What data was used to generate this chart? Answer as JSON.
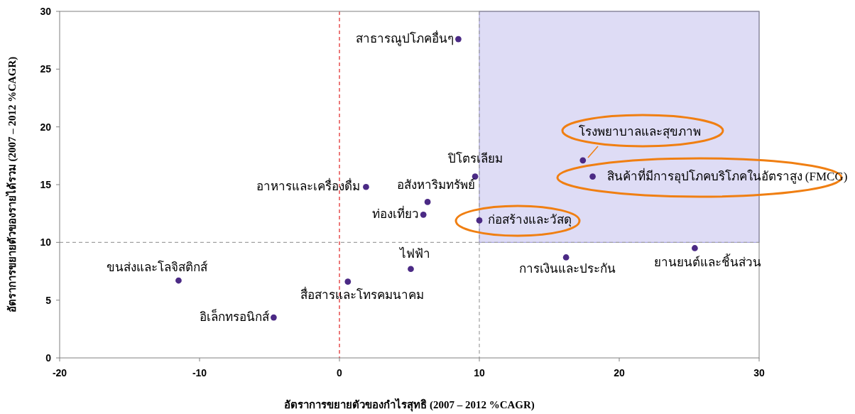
{
  "chart_data": {
    "type": "scatter",
    "xlabel": "อัตราการขยายตัวของกำไรสุทธิ (2007 – 2012 %CAGR)",
    "ylabel": "อัตราการขยายตัวของรายได้รวม (2007 – 2012 %CAGR)",
    "x": [
      8.5,
      17.4,
      18.1,
      9.7,
      1.9,
      6.3,
      6.0,
      10.0,
      16.2,
      25.4,
      5.1,
      -11.5,
      0.6,
      -4.7
    ],
    "series": [
      {
        "color": "#4b2a85",
        "values": [
          27.6,
          17.1,
          15.7,
          15.7,
          14.8,
          13.5,
          12.4,
          11.9,
          8.7,
          9.5,
          7.7,
          6.7,
          6.6,
          3.5
        ]
      }
    ],
    "annotations": [
      {
        "text": "สาธารณูปโภคอื่นๆ",
        "x": 8.5,
        "y": 27.6
      },
      {
        "text": "โรงพยาบาลและสุขภาพ",
        "x": 17.4,
        "y": 17.1
      },
      {
        "text": "สินค้าที่มีการอุปโภคบริโภคในอัตราสูง (FMCG)",
        "x": 18.1,
        "y": 15.7
      },
      {
        "text": "ปิโตรเลียม",
        "x": 9.7,
        "y": 15.7
      },
      {
        "text": "อาหารและเครื่องดื่ม",
        "x": 1.9,
        "y": 14.8
      },
      {
        "text": "อสังหาริมทรัพย์",
        "x": 6.3,
        "y": 13.5
      },
      {
        "text": "ท่องเที่ยว",
        "x": 6.0,
        "y": 12.4
      },
      {
        "text": "ก่อสร้างและวัสดุ",
        "x": 10.0,
        "y": 11.9
      },
      {
        "text": "การเงินและประกัน",
        "x": 16.2,
        "y": 8.7
      },
      {
        "text": "ยานยนต์และชิ้นส่วน",
        "x": 25.4,
        "y": 9.5
      },
      {
        "text": "ไฟฟ้า",
        "x": 5.1,
        "y": 7.7
      },
      {
        "text": "ขนส่งและโลจิสติกส์",
        "x": -11.5,
        "y": 6.7
      },
      {
        "text": "สื่อสารและโทรคมนาคม",
        "x": 0.6,
        "y": 6.6
      },
      {
        "text": "อิเล็กทรอนิกส์",
        "x": -4.7,
        "y": 3.5
      }
    ],
    "xlim": [
      -20,
      30
    ],
    "xticks": [
      -20,
      -10,
      0,
      10,
      20,
      30
    ],
    "ylim": [
      0,
      30
    ],
    "yticks": [
      0,
      5,
      10,
      15,
      20,
      25,
      30
    ],
    "ref_lines": [
      {
        "axis": "x",
        "value": 0,
        "color": "#e02020",
        "line_style": "dashed"
      },
      {
        "axis": "x",
        "value": 10,
        "color": "#a0a0a0",
        "line_style": "dashed"
      },
      {
        "axis": "y",
        "value": 10,
        "color": "#a0a0a0",
        "line_style": "dashed"
      }
    ],
    "grid": false,
    "marker": "circle"
  }
}
